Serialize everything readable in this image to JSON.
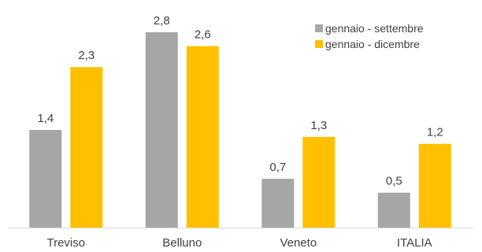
{
  "chart_data": {
    "type": "bar",
    "categories": [
      "Treviso",
      "Belluno",
      "Veneto",
      "ITALIA"
    ],
    "series": [
      {
        "name": "gennaio - settembre",
        "color": "#A6A6A6",
        "values": [
          1.4,
          2.8,
          0.7,
          0.5
        ],
        "labels": [
          "1,4",
          "2,8",
          "0,7",
          "0,5"
        ]
      },
      {
        "name": "gennaio - dicembre",
        "color": "#FFC000",
        "values": [
          2.3,
          2.6,
          1.3,
          1.2
        ],
        "labels": [
          "2,3",
          "2,6",
          "1,3",
          "1,2"
        ]
      }
    ],
    "ylim": [
      0,
      3.0
    ],
    "grid": false,
    "legend_position": "top-right",
    "axis_line_color": "#D9D9D9",
    "label_color": "#404040"
  }
}
